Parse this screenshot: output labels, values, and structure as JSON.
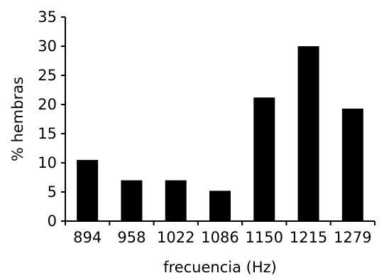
{
  "chart_data": {
    "type": "bar",
    "title": "",
    "xlabel": "frecuencia (Hz)",
    "ylabel": "% hembras",
    "categories": [
      "894",
      "958",
      "1022",
      "1086",
      "1150",
      "1215",
      "1279"
    ],
    "values": [
      10.5,
      7,
      7,
      5.2,
      21.2,
      30,
      19.3
    ],
    "ylim": [
      0,
      35
    ],
    "yticks": [
      "0",
      "5",
      "10",
      "15",
      "20",
      "25",
      "30",
      "35"
    ],
    "grid": false,
    "legend": "none",
    "bar_color": "#000000",
    "axis_color": "#000000"
  }
}
